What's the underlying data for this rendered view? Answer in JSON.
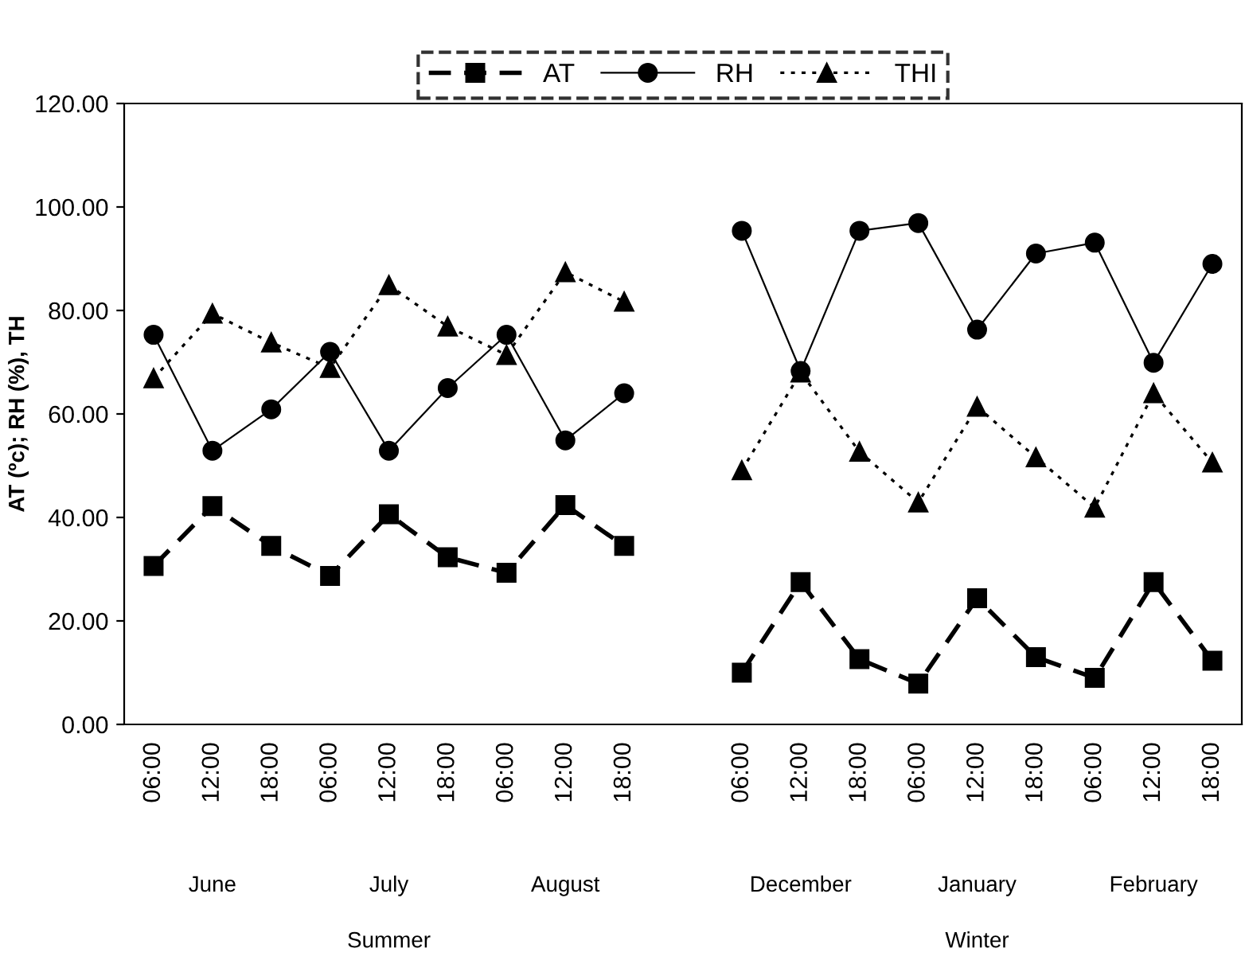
{
  "chart_data": {
    "type": "line",
    "ylabel": "AT (ºc); RH (%), TH",
    "categories": [
      "06:00",
      "12:00",
      "18:00",
      "06:00",
      "12:00",
      "18:00",
      "06:00",
      "12:00",
      "18:00",
      null,
      "06:00",
      "12:00",
      "18:00",
      "06:00",
      "12:00",
      "18:00",
      "06:00",
      "12:00",
      "18:00"
    ],
    "series": [
      {
        "name": "AT",
        "color": "#000000",
        "marker": "square",
        "line_style": "dashed",
        "values": [
          30.6,
          42.2,
          34.5,
          28.7,
          40.6,
          32.3,
          29.3,
          42.4,
          34.5,
          null,
          10.0,
          27.5,
          12.6,
          7.9,
          24.4,
          13.0,
          9.0,
          27.5,
          12.3
        ]
      },
      {
        "name": "RH",
        "color": "#000000",
        "marker": "circle",
        "line_style": "solid",
        "values": [
          75.3,
          52.9,
          60.9,
          72.0,
          52.9,
          65.0,
          75.3,
          54.9,
          64.0,
          null,
          95.4,
          68.3,
          95.4,
          96.9,
          76.3,
          91.0,
          93.1,
          69.9,
          89.0
        ]
      },
      {
        "name": "THI",
        "color": "#000000",
        "marker": "triangle",
        "line_style": "dotted",
        "values": [
          66.9,
          79.4,
          73.8,
          68.9,
          84.9,
          76.9,
          71.4,
          87.4,
          81.7,
          null,
          49.1,
          68.0,
          52.7,
          42.9,
          61.4,
          51.6,
          41.9,
          64.0,
          50.6
        ]
      }
    ],
    "ylim": [
      0,
      120
    ],
    "yticks": [
      {
        "value": 0,
        "label": "0.00"
      },
      {
        "value": 20,
        "label": "20.00"
      },
      {
        "value": 40,
        "label": "40.00"
      },
      {
        "value": 60,
        "label": "60.00"
      },
      {
        "value": 80,
        "label": "80.00"
      },
      {
        "value": 100,
        "label": "100.00"
      },
      {
        "value": 120,
        "label": "120.00"
      }
    ],
    "annotations": [
      "June",
      "July",
      "August",
      "December",
      "January",
      "February",
      "Summer",
      "Winter"
    ],
    "legend": "top",
    "grid": false
  }
}
